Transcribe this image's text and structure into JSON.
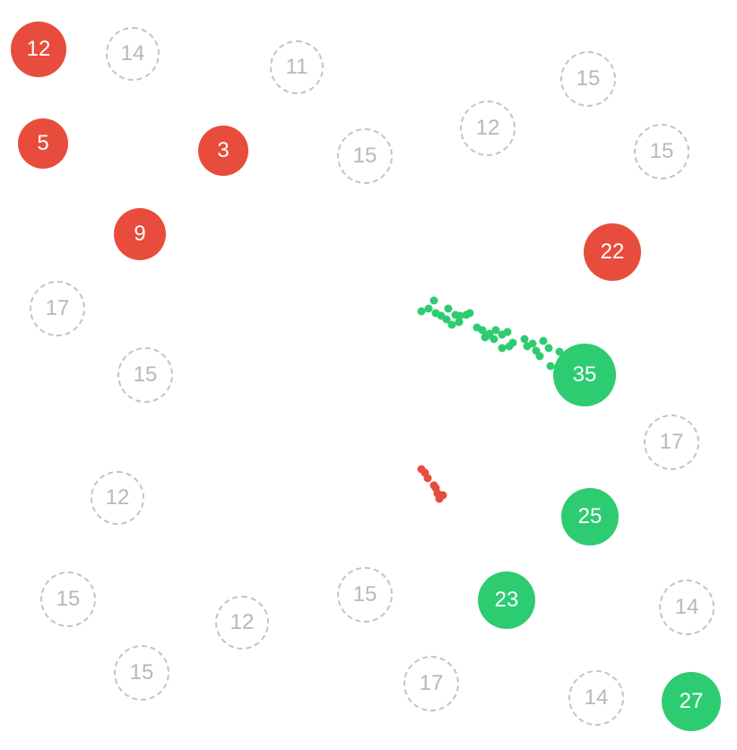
{
  "colors": {
    "red": "#e74c3c",
    "green": "#2ecc71",
    "neutral": "#c4c4c4"
  },
  "nodes": [
    {
      "id": "n1",
      "value": "12",
      "owner": "red"
    },
    {
      "id": "n2",
      "value": "14",
      "owner": "neutral"
    },
    {
      "id": "n3",
      "value": "11",
      "owner": "neutral"
    },
    {
      "id": "n4",
      "value": "15",
      "owner": "neutral"
    },
    {
      "id": "n5",
      "value": "5",
      "owner": "red"
    },
    {
      "id": "n6",
      "value": "3",
      "owner": "red"
    },
    {
      "id": "n7",
      "value": "15",
      "owner": "neutral"
    },
    {
      "id": "n8",
      "value": "12",
      "owner": "neutral"
    },
    {
      "id": "n9",
      "value": "15",
      "owner": "neutral"
    },
    {
      "id": "n10",
      "value": "9",
      "owner": "red"
    },
    {
      "id": "n11",
      "value": "22",
      "owner": "red"
    },
    {
      "id": "n12",
      "value": "17",
      "owner": "neutral"
    },
    {
      "id": "n13",
      "value": "15",
      "owner": "neutral"
    },
    {
      "id": "n14",
      "value": "35",
      "owner": "green"
    },
    {
      "id": "n15",
      "value": "17",
      "owner": "neutral"
    },
    {
      "id": "n16",
      "value": "12",
      "owner": "neutral"
    },
    {
      "id": "n17",
      "value": "25",
      "owner": "green"
    },
    {
      "id": "n18",
      "value": "15",
      "owner": "neutral"
    },
    {
      "id": "n19",
      "value": "15",
      "owner": "neutral"
    },
    {
      "id": "n20",
      "value": "12",
      "owner": "neutral"
    },
    {
      "id": "n21",
      "value": "23",
      "owner": "green"
    },
    {
      "id": "n22",
      "value": "14",
      "owner": "neutral"
    },
    {
      "id": "n23",
      "value": "15",
      "owner": "neutral"
    },
    {
      "id": "n24",
      "value": "17",
      "owner": "neutral"
    },
    {
      "id": "n25",
      "value": "14",
      "owner": "neutral"
    },
    {
      "id": "n26",
      "value": "27",
      "owner": "green"
    }
  ],
  "swarms": [
    {
      "owner": "green"
    },
    {
      "owner": "red"
    }
  ]
}
